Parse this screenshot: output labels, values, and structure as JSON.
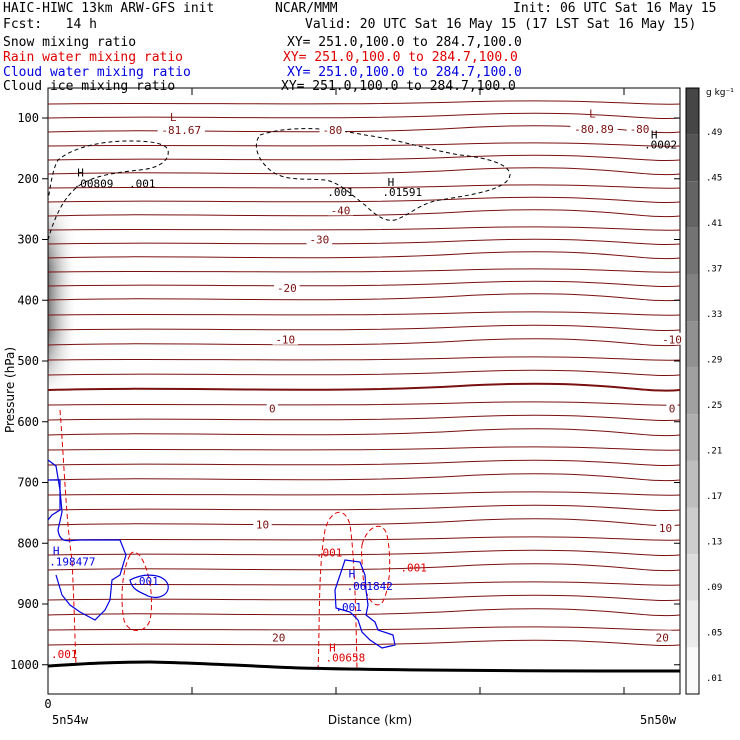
{
  "header": {
    "title_left": "HAIC-HIWC 13km ARW-GFS init",
    "org": "NCAR/MMM",
    "init": "Init: 06 UTC Sat 16 May 15",
    "fcst": "Fcst:   14 h",
    "valid": "Valid: 20 UTC Sat 16 May 15 (17 LST Sat 16 May 15)",
    "fields": [
      {
        "name": "Snow mixing ratio",
        "xy": "XY= 251.0,100.0 to 284.7,100.0",
        "color": "#000000"
      },
      {
        "name": "Rain water mixing ratio",
        "xy": "XY= 251.0,100.0 to 284.7,100.0",
        "color": "#e00000"
      },
      {
        "name": "Cloud water mixing ratio",
        "xy": "XY= 251.0,100.0 to 284.7,100.0",
        "color": "#0000e0"
      },
      {
        "name": "Cloud ice mixing ratio",
        "xy": "XY= 251.0,100.0 to 284.7,100.0",
        "color": "#000000"
      }
    ]
  },
  "chart_data": {
    "type": "contour",
    "xlabel": "Distance (km)",
    "ylabel": "Pressure (hPa)",
    "xlim": [
      0,
      390
    ],
    "ylim": [
      1050,
      50
    ],
    "y_ticks": [
      100,
      200,
      300,
      400,
      500,
      600,
      700,
      800,
      900,
      1000
    ],
    "x_ticks": [
      0,
      100,
      200,
      300,
      400
    ],
    "x_tick_labels": [
      "0"
    ],
    "x_endpoints": [
      "5n54w",
      "5n50w"
    ],
    "colorbar": {
      "unit": "g kg⁻¹",
      "levels": [
        ".49",
        ".45",
        ".41",
        ".37",
        ".33",
        ".29",
        ".25",
        ".21",
        ".17",
        ".13",
        ".09",
        ".05",
        ".01"
      ]
    },
    "temperature_labels": [
      {
        "text": "-81.67",
        "x": 82,
        "p": 120
      },
      {
        "text": "-80",
        "x": 175,
        "p": 120
      },
      {
        "text": "-80.89",
        "x": 336,
        "p": 118
      },
      {
        "text": "-80",
        "x": 364,
        "p": 118
      },
      {
        "text": "-40",
        "x": 180,
        "p": 252
      },
      {
        "text": "-30",
        "x": 167,
        "p": 300
      },
      {
        "text": "-20",
        "x": 147,
        "p": 380
      },
      {
        "text": "-10",
        "x": 146,
        "p": 465
      },
      {
        "text": "-10",
        "x": 384,
        "p": 465
      },
      {
        "text": "0",
        "x": 138,
        "p": 578
      },
      {
        "text": "0",
        "x": 384,
        "p": 578
      },
      {
        "text": "10",
        "x": 132,
        "p": 769
      },
      {
        "text": "10",
        "x": 380,
        "p": 775
      },
      {
        "text": "20",
        "x": 142,
        "p": 955
      },
      {
        "text": "20",
        "x": 378,
        "p": 955
      }
    ],
    "extrema_labels": [
      {
        "text": "L",
        "x": 77,
        "p": 98,
        "color": "#8b1a1a"
      },
      {
        "text": "L",
        "x": 335,
        "p": 93,
        "color": "#8b1a1a"
      },
      {
        "text": "H",
        "x": 373,
        "p": 127,
        "color": "#000000"
      },
      {
        "text": ".0002",
        "x": 377,
        "p": 144,
        "color": "#000000"
      },
      {
        "text": "H",
        "x": 20,
        "p": 190,
        "color": "#000000"
      },
      {
        "text": ".00809",
        "x": 28,
        "p": 208,
        "color": "#000000"
      },
      {
        "text": ".001",
        "x": 58,
        "p": 208,
        "color": "#000000"
      },
      {
        "text": "H",
        "x": 211,
        "p": 205,
        "color": "#000000"
      },
      {
        "text": ".001",
        "x": 180,
        "p": 222,
        "color": "#000000"
      },
      {
        "text": ".01591",
        "x": 218,
        "p": 222,
        "color": "#000000"
      },
      {
        "text": "H",
        "x": 5,
        "p": 812,
        "color": "#0000e0"
      },
      {
        "text": ".198477",
        "x": 15,
        "p": 830,
        "color": "#0000e0"
      },
      {
        "text": ".001",
        "x": 60,
        "p": 862,
        "color": "#0000e0"
      },
      {
        "text": ".001",
        "x": 173,
        "p": 815,
        "color": "#e00000"
      },
      {
        "text": "H",
        "x": 187,
        "p": 850,
        "color": "#0000e0"
      },
      {
        "text": ".061842",
        "x": 198,
        "p": 870,
        "color": "#0000e0"
      },
      {
        "text": ".001",
        "x": 185,
        "p": 905,
        "color": "#0000e0"
      },
      {
        "text": ".001",
        "x": 225,
        "p": 840,
        "color": "#e00000"
      },
      {
        "text": "H",
        "x": 175,
        "p": 972,
        "color": "#e00000"
      },
      {
        "text": ".00658",
        "x": 183,
        "p": 988,
        "color": "#e00000"
      },
      {
        "text": ".001",
        "x": 10,
        "p": 982,
        "color": "#e00000"
      }
    ]
  }
}
